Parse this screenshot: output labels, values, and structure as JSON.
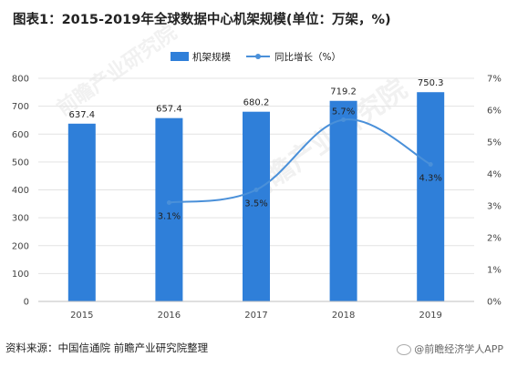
{
  "title": "图表1：2015-2019年全球数据中心机架规模(单位：万架，%)",
  "source": "资料来源：中国信通院 前瞻产业研究院整理",
  "app_label": "@前瞻经济学人APP",
  "watermark": "前瞻产业研究院",
  "colors": {
    "bar": "#2F7FD9",
    "line": "#4A90D9",
    "grid": "#E3E3E3"
  },
  "chart_data": {
    "type": "bar",
    "categories": [
      "2015",
      "2016",
      "2017",
      "2018",
      "2019"
    ],
    "series": [
      {
        "name": "机架规模",
        "type": "bar",
        "axis": "left",
        "values": [
          637.4,
          657.4,
          680.2,
          719.2,
          750.3
        ],
        "labels": [
          "637.4",
          "657.4",
          "680.2",
          "719.2",
          "750.3"
        ]
      },
      {
        "name": "同比增长（%）",
        "type": "line",
        "axis": "right",
        "values": [
          null,
          3.1,
          3.5,
          5.7,
          4.3
        ],
        "labels": [
          "",
          "3.1%",
          "3.5%",
          "5.7%",
          "4.3%"
        ]
      }
    ],
    "y_left": {
      "min": 0,
      "max": 800,
      "ticks": [
        "0",
        "100",
        "200",
        "300",
        "400",
        "500",
        "600",
        "700",
        "800"
      ]
    },
    "y_right": {
      "min": 0,
      "max": 7,
      "ticks": [
        "0%",
        "1%",
        "2%",
        "3%",
        "4%",
        "5%",
        "6%",
        "7%"
      ]
    },
    "legend_position": "top",
    "grid": true
  }
}
